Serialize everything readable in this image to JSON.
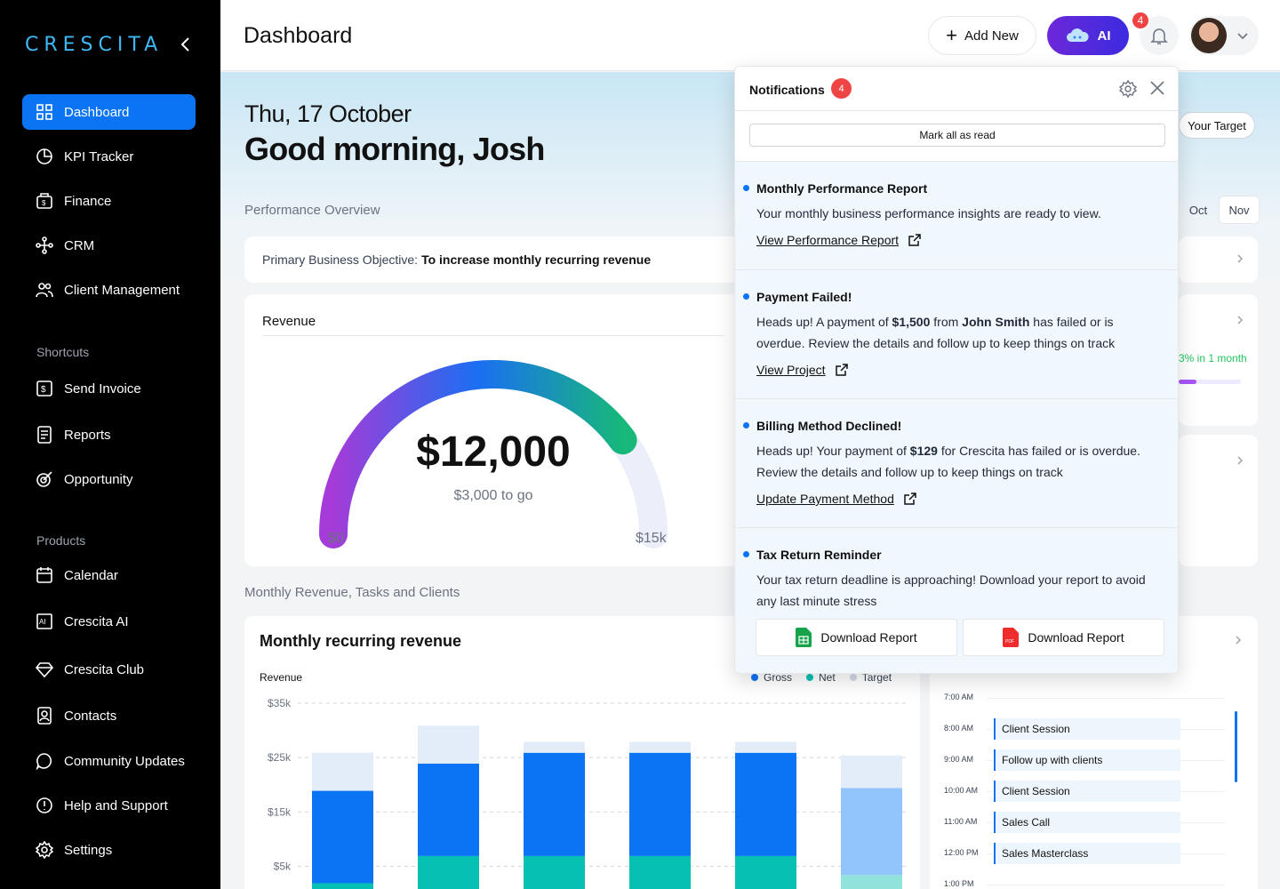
{
  "brand": {
    "logo_text": "CRESCITA"
  },
  "sidebar": {
    "items": [
      {
        "label": "Dashboard"
      },
      {
        "label": "KPI Tracker"
      },
      {
        "label": "Finance"
      },
      {
        "label": "CRM"
      },
      {
        "label": "Client Management"
      }
    ],
    "shortcuts_label": "Shortcuts",
    "shortcuts": [
      {
        "label": "Send Invoice"
      },
      {
        "label": "Reports"
      },
      {
        "label": "Opportunity"
      }
    ],
    "products_label": "Products",
    "products": [
      {
        "label": "Calendar"
      },
      {
        "label": "Crescita AI"
      },
      {
        "label": "Crescita Club"
      },
      {
        "label": "Contacts"
      },
      {
        "label": "Community Updates"
      },
      {
        "label": "Help and Support"
      },
      {
        "label": "Settings"
      }
    ]
  },
  "header": {
    "title": "Dashboard",
    "add_new_label": "Add New",
    "ai_label": "AI",
    "notification_count": "4"
  },
  "main": {
    "date": "Thu, 17 October",
    "greeting": "Good morning, Josh",
    "performance_label": "Performance Overview",
    "objective_prefix": "Primary Business Objective:",
    "objective_value": "To increase monthly recurring revenue",
    "target_label": "Your Target",
    "months": [
      "Oct",
      "Nov"
    ],
    "growth_text": "3% in 1 month",
    "revenue": {
      "title": "Revenue",
      "value": "$12,000",
      "to_go": "$3,000 to go",
      "min_label": "$0",
      "max_label": "$15k",
      "progress": 0.8
    },
    "monthly_label": "Monthly Revenue, Tasks and Clients"
  },
  "chart_data": {
    "type": "bar",
    "title": "Monthly recurring revenue",
    "ylabel": "Revenue",
    "y_ticks": [
      "$35k",
      "$25k",
      "$15k",
      "$5k"
    ],
    "ylim": [
      0,
      35
    ],
    "legend": [
      "Gross",
      "Net",
      "Target"
    ],
    "series": [
      {
        "name": "Net",
        "values": [
          4.5,
          9.5,
          9.5,
          9.5,
          9.5,
          6
        ]
      },
      {
        "name": "Gross",
        "values": [
          17,
          17,
          19,
          19,
          19,
          16
        ]
      },
      {
        "name": "Target",
        "values": [
          7,
          7,
          2,
          2,
          2,
          6
        ]
      }
    ],
    "colors": {
      "Gross": "#0a74f5",
      "Net": "#06c1b3",
      "Target": "#e3edfa"
    }
  },
  "calendar": {
    "times": [
      "7:00 AM",
      "8:00 AM",
      "9:00 AM",
      "10:00 AM",
      "11:00 AM",
      "12:00 PM",
      "1:00 PM"
    ],
    "events": [
      "Client Session",
      "Follow up with clients",
      "Client Session",
      "Sales Call",
      "Sales Masterclass"
    ]
  },
  "notifications": {
    "title": "Notifications",
    "count": "4",
    "mark_all": "Mark all as read",
    "items": [
      {
        "title": "Monthly Performance Report",
        "body": "Your monthly business performance insights are ready to view.",
        "link": "View Performance Report"
      },
      {
        "title": "Payment Failed!",
        "body_1": "Heads up! A payment of ",
        "amount": "$1,500",
        "body_2": " from ",
        "person": "John Smith",
        "body_3": " has failed or is overdue. Review the details and follow up to keep things on track",
        "link": "View Project"
      },
      {
        "title": "Billing Method Declined!",
        "body_1": "Heads up! Your payment of ",
        "amount": "$129",
        "body_2": " for Crescita has failed or is overdue. Review the details and follow up to keep things on track",
        "link": "Update Payment Method"
      },
      {
        "title": "Tax Return Reminder",
        "body": "Your tax return deadline is approaching! Download your report to avoid any last minute stress",
        "download_sheet": "Download Report",
        "download_pdf": "Download Report"
      }
    ]
  }
}
